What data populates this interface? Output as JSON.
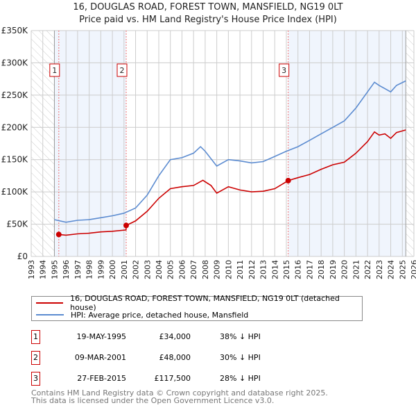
{
  "title_line1": "16, DOUGLAS ROAD, FOREST TOWN, MANSFIELD, NG19 0LT",
  "title_line2": "Price paid vs. HM Land Registry's House Price Index (HPI)",
  "chart_data": {
    "type": "line",
    "xlim": [
      1993,
      2026
    ],
    "ylim": [
      0,
      350000
    ],
    "yticks": [
      0,
      50000,
      100000,
      150000,
      200000,
      250000,
      300000,
      350000
    ],
    "ytick_labels": [
      "£0",
      "£50K",
      "£100K",
      "£150K",
      "£200K",
      "£250K",
      "£300K",
      "£350K"
    ],
    "xticks": [
      1993,
      1994,
      1995,
      1996,
      1997,
      1998,
      1999,
      2000,
      2001,
      2002,
      2003,
      2004,
      2005,
      2006,
      2007,
      2008,
      2009,
      2010,
      2011,
      2012,
      2013,
      2014,
      2015,
      2016,
      2017,
      2018,
      2019,
      2020,
      2021,
      2022,
      2023,
      2024,
      2025,
      2026
    ],
    "grid": true,
    "data_start": 1995,
    "data_end": 2025.3,
    "series": [
      {
        "name": "16, DOUGLAS ROAD, FOREST TOWN, MANSFIELD, NG19 0LT (detached house)",
        "color": "#cc0000",
        "x": [
          1995.38,
          1996,
          1997,
          1998,
          1999,
          2000,
          2001.18,
          2001.19,
          2002,
          2003,
          2004,
          2005,
          2006,
          2007,
          2007.8,
          2008.5,
          2009,
          2010,
          2011,
          2012,
          2013,
          2014,
          2015.16,
          2016,
          2017,
          2018,
          2019,
          2020,
          2021,
          2022,
          2022.6,
          2023,
          2023.5,
          2024,
          2024.5,
          2025.3
        ],
        "y": [
          34000,
          33000,
          35000,
          36000,
          38000,
          39000,
          41000,
          48000,
          55000,
          70000,
          90000,
          105000,
          108000,
          110000,
          118000,
          110000,
          98000,
          108000,
          103000,
          100000,
          101000,
          105000,
          117500,
          122000,
          127000,
          135000,
          142000,
          146000,
          160000,
          178000,
          193000,
          188000,
          190000,
          183000,
          192000,
          196000
        ]
      },
      {
        "name": "HPI: Average price, detached house, Mansfield",
        "color": "#5b8bd0",
        "x": [
          1995,
          1996,
          1997,
          1998,
          1999,
          2000,
          2001,
          2002,
          2003,
          2004,
          2005,
          2006,
          2007,
          2007.6,
          2008,
          2009,
          2010,
          2011,
          2012,
          2013,
          2014,
          2015,
          2016,
          2017,
          2018,
          2019,
          2020,
          2021,
          2022,
          2022.6,
          2023,
          2023.5,
          2024,
          2024.5,
          2025.3
        ],
        "y": [
          57000,
          53000,
          56000,
          57000,
          60000,
          63000,
          67000,
          75000,
          95000,
          125000,
          150000,
          153000,
          160000,
          170000,
          163000,
          140000,
          150000,
          148000,
          145000,
          147000,
          155000,
          163000,
          170000,
          180000,
          190000,
          200000,
          210000,
          230000,
          255000,
          270000,
          265000,
          260000,
          255000,
          265000,
          272000
        ]
      }
    ],
    "sales": [
      {
        "label": "1",
        "x": 1995.38,
        "y": 34000
      },
      {
        "label": "2",
        "x": 2001.19,
        "y": 48000
      },
      {
        "label": "3",
        "x": 2015.16,
        "y": 117500
      }
    ]
  },
  "legend": {
    "property": "16, DOUGLAS ROAD, FOREST TOWN, MANSFIELD, NG19 0LT (detached house)",
    "hpi": "HPI: Average price, detached house, Mansfield"
  },
  "transactions": [
    {
      "num": "1",
      "date": "19-MAY-1995",
      "price": "£34,000",
      "delta": "38% ↓ HPI"
    },
    {
      "num": "2",
      "date": "09-MAR-2001",
      "price": "£48,000",
      "delta": "30% ↓ HPI"
    },
    {
      "num": "3",
      "date": "27-FEB-2015",
      "price": "£117,500",
      "delta": "28% ↓ HPI"
    }
  ],
  "footer_line1": "Contains HM Land Registry data © Crown copyright and database right 2025.",
  "footer_line2": "This data is licensed under the Open Government Licence v3.0."
}
